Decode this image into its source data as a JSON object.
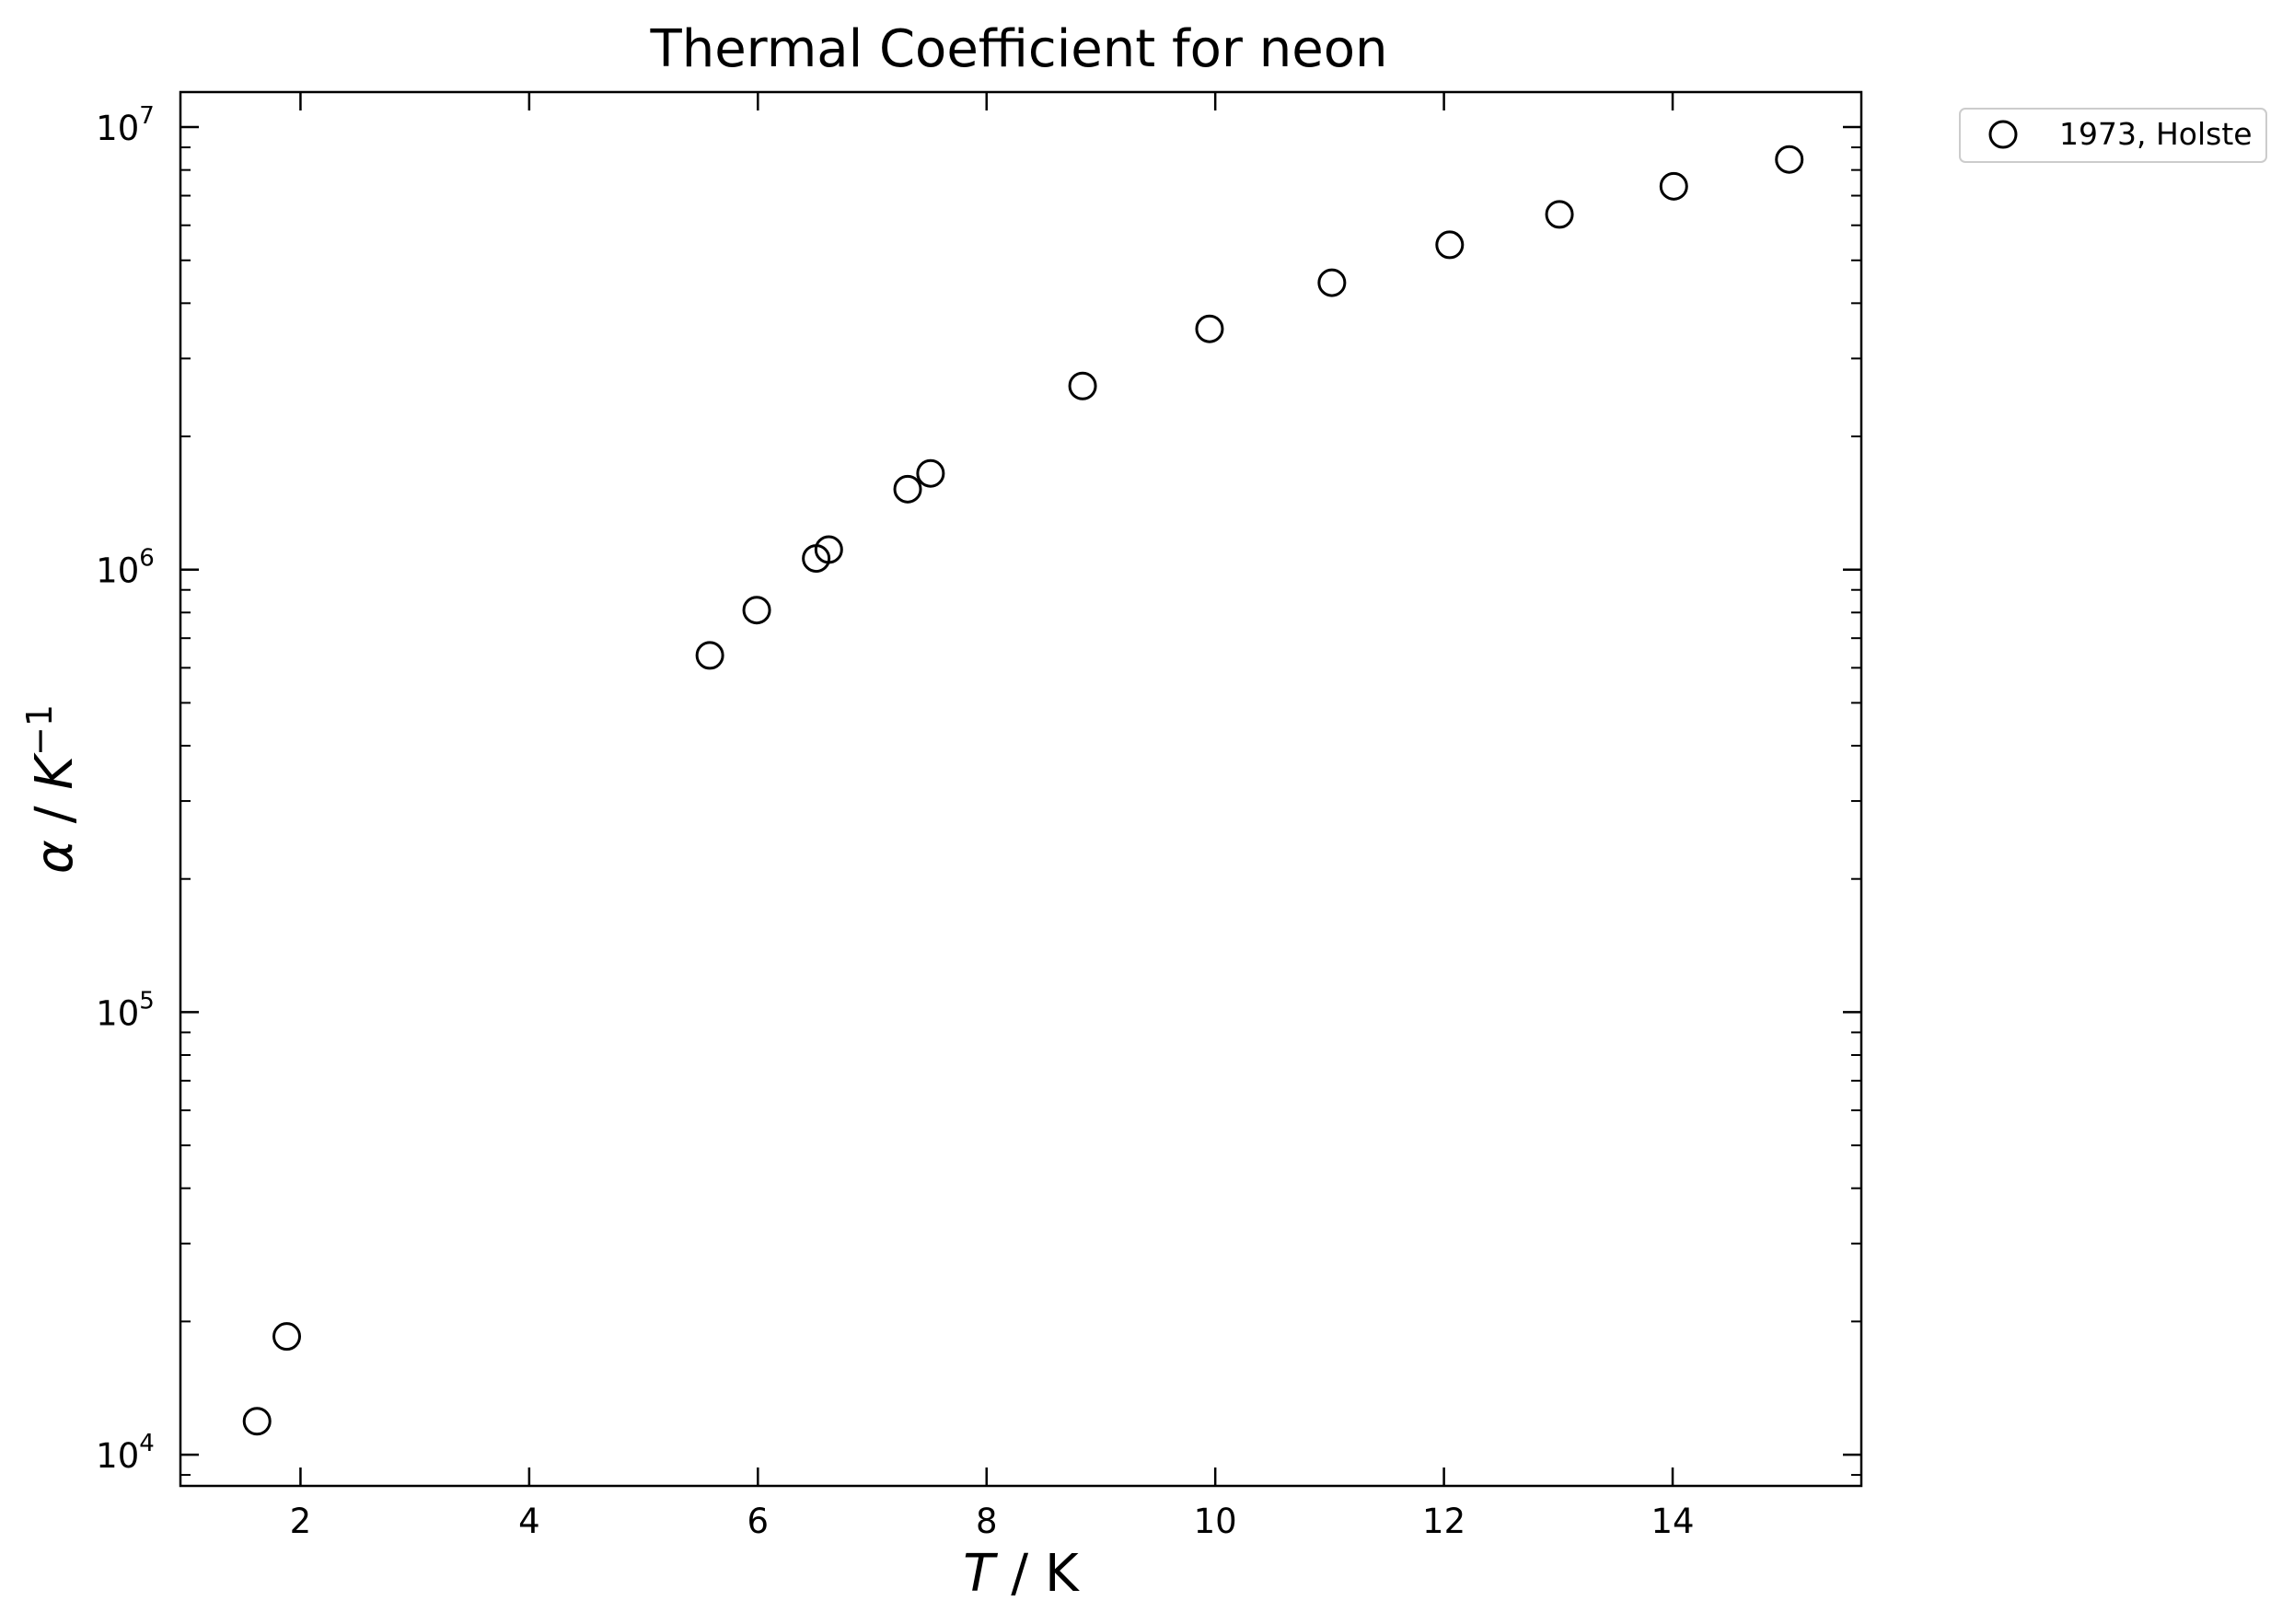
{
  "chart_data": {
    "type": "scatter",
    "title": "Thermal Coefficient for neon",
    "xlabel": {
      "var": "T",
      "unit": " / K"
    },
    "ylabel": {
      "var": "α",
      "unit": " / ",
      "unit_var": "K",
      "unit_sup": "−1"
    },
    "xlim": [
      0.95,
      15.65
    ],
    "ylim": [
      8500,
      12000000
    ],
    "yscale": "log",
    "x_ticks": [
      2,
      4,
      6,
      8,
      10,
      12,
      14
    ],
    "y_ticks": [
      {
        "value": 10000,
        "base": "10",
        "exp": "4"
      },
      {
        "value": 100000,
        "base": "10",
        "exp": "5"
      },
      {
        "value": 1000000,
        "base": "10",
        "exp": "6"
      },
      {
        "value": 10000000,
        "base": "10",
        "exp": "7"
      }
    ],
    "grid": false,
    "legend_position": "outside-top-right",
    "series": [
      {
        "name": "1973, Holste",
        "marker": "open-circle",
        "color": "#000000",
        "points": [
          {
            "x": 1.62,
            "y": 11900
          },
          {
            "x": 1.88,
            "y": 18500
          },
          {
            "x": 5.58,
            "y": 640000
          },
          {
            "x": 5.99,
            "y": 810000
          },
          {
            "x": 6.51,
            "y": 1060000
          },
          {
            "x": 6.62,
            "y": 1110000
          },
          {
            "x": 7.31,
            "y": 1520000
          },
          {
            "x": 7.51,
            "y": 1650000
          },
          {
            "x": 8.84,
            "y": 2600000
          },
          {
            "x": 9.95,
            "y": 3500000
          },
          {
            "x": 11.02,
            "y": 4450000
          },
          {
            "x": 12.05,
            "y": 5420000
          },
          {
            "x": 13.01,
            "y": 6350000
          },
          {
            "x": 14.01,
            "y": 7350000
          },
          {
            "x": 15.02,
            "y": 8450000
          }
        ]
      }
    ]
  }
}
